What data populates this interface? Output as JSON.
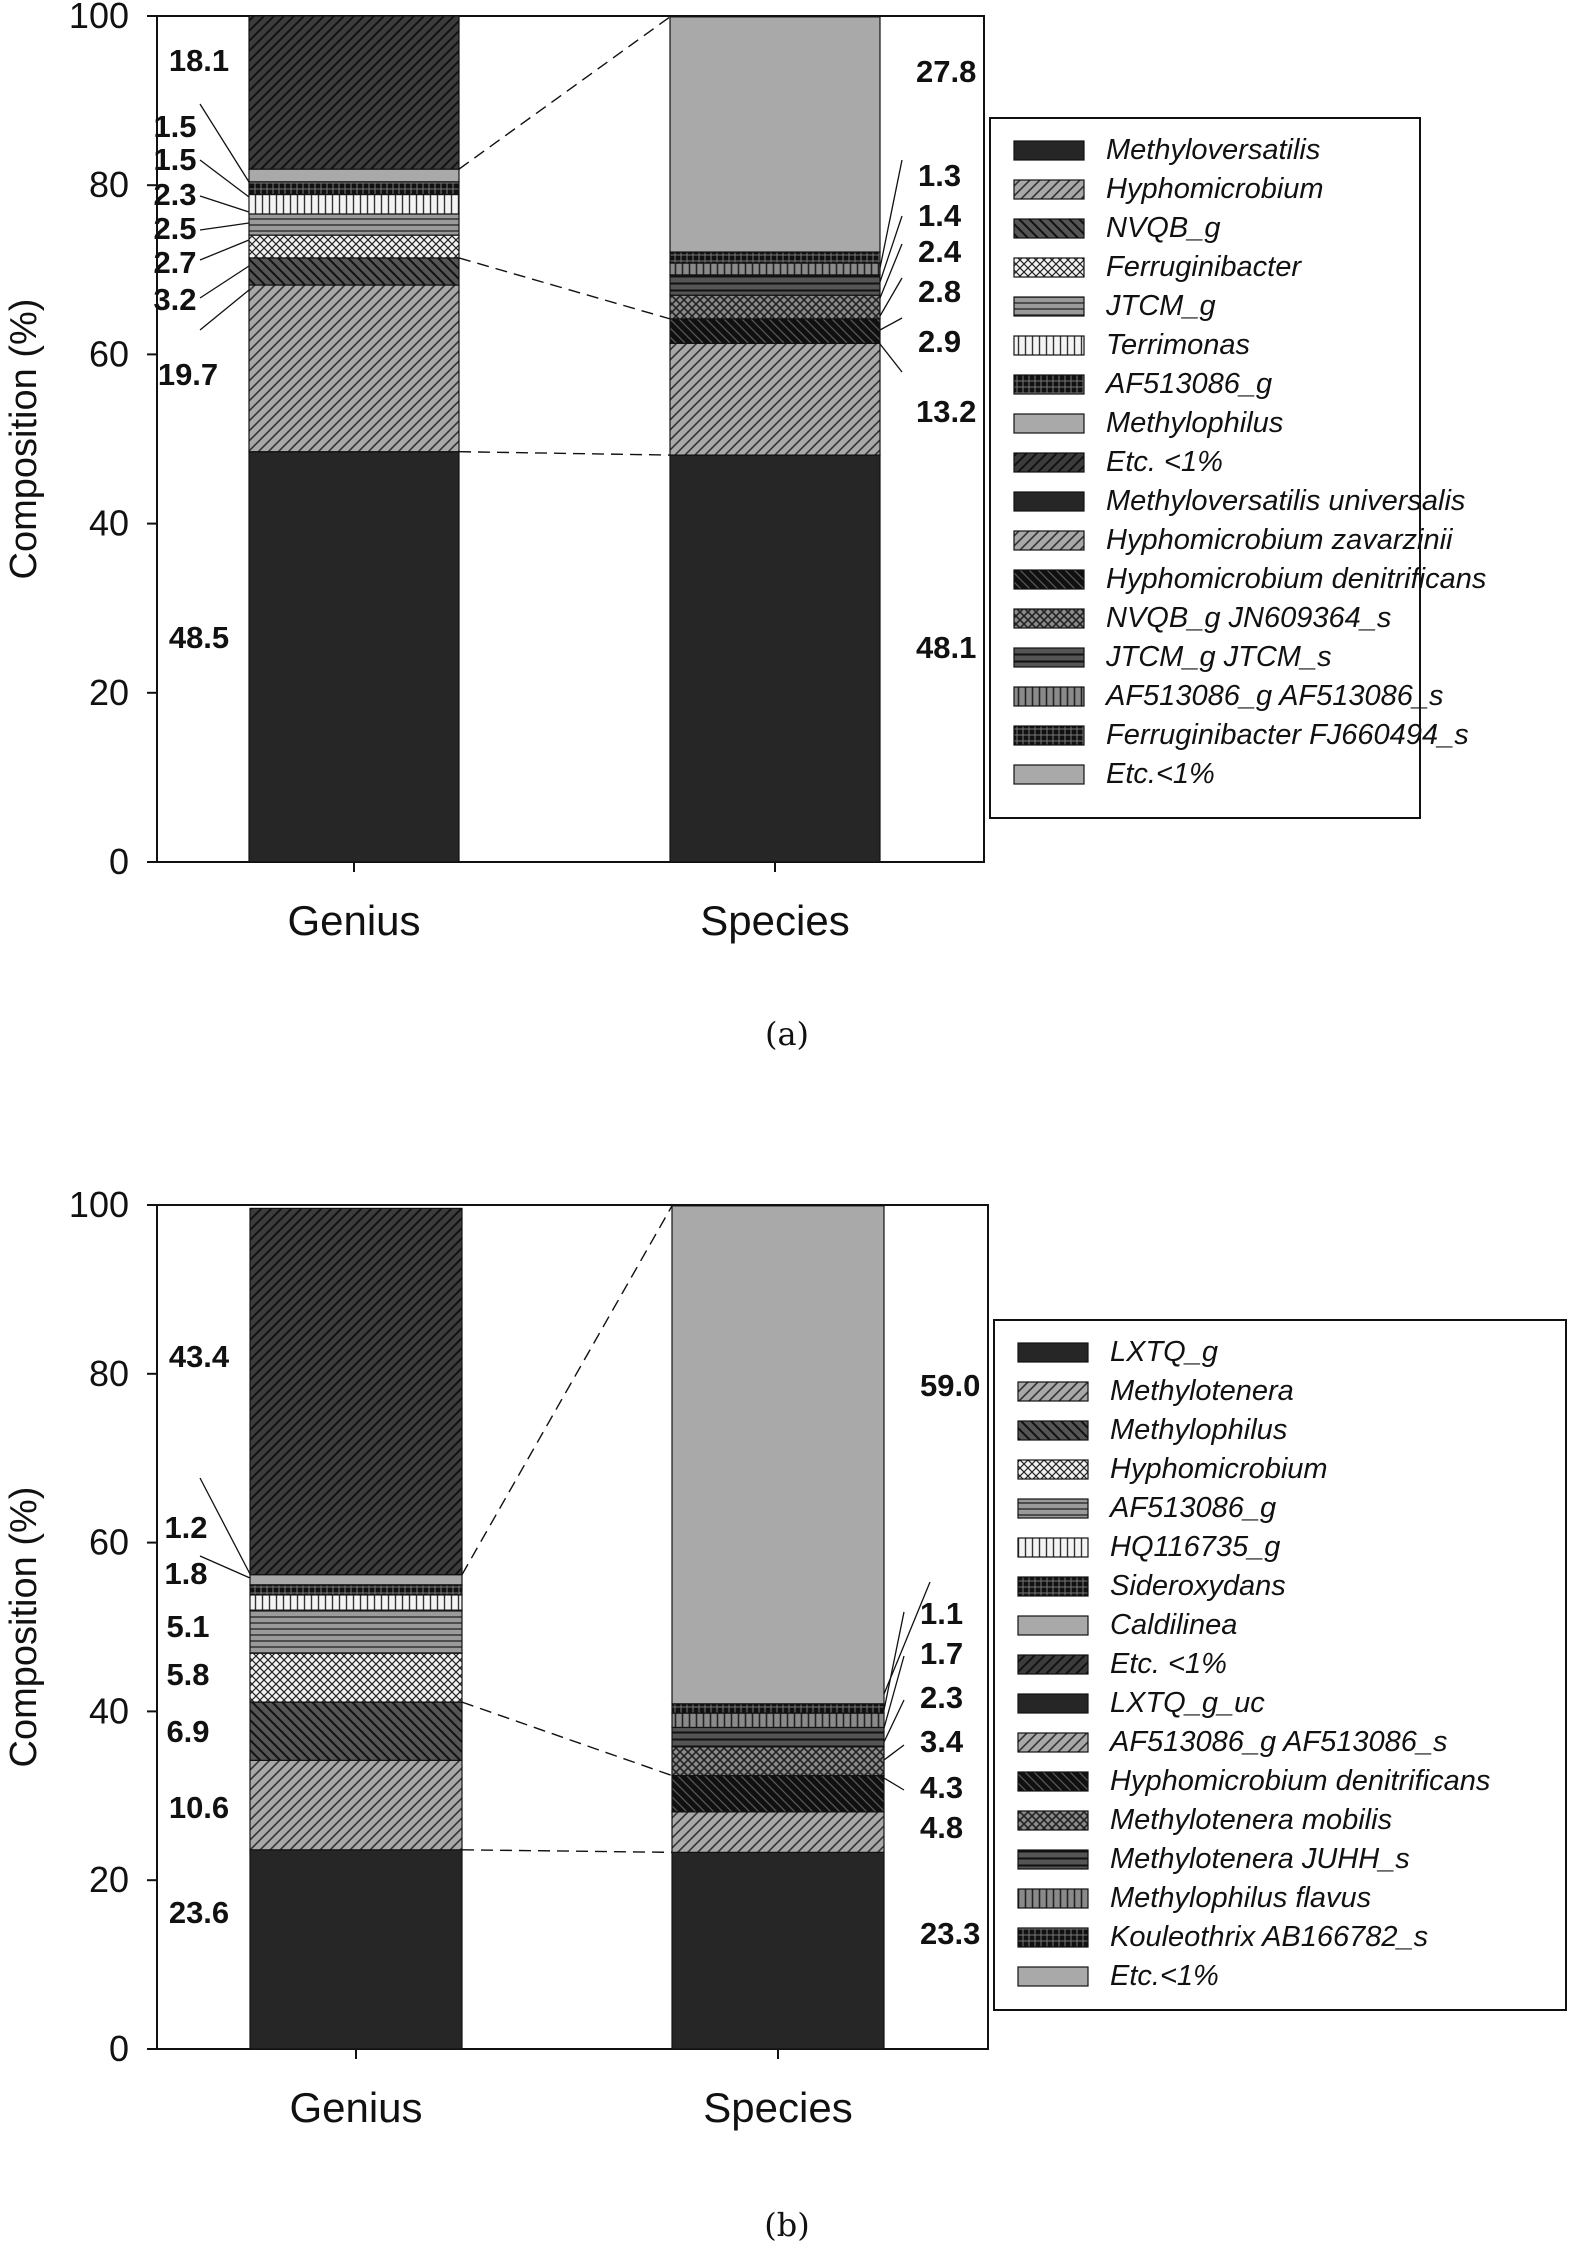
{
  "chart_data": [
    {
      "type": "bar",
      "caption": "(a)",
      "ylabel": "Composition (%)",
      "ylim": [
        0,
        100
      ],
      "yticks": [
        0,
        20,
        40,
        60,
        80,
        100
      ],
      "categories": [
        "Genius",
        "Species"
      ],
      "bars": [
        {
          "name": "Genius",
          "segments": [
            {
              "label": "Methyloversatilis",
              "value": 48.5,
              "pattern": "dark"
            },
            {
              "label": "Hyphomicrobium",
              "value": 19.7,
              "pattern": "diag"
            },
            {
              "label": "NVQB_g",
              "value": 3.2,
              "pattern": "backdiag"
            },
            {
              "label": "Ferruginibacter",
              "value": 2.7,
              "pattern": "crosshatch"
            },
            {
              "label": "JTCM_g",
              "value": 2.5,
              "pattern": "hlines"
            },
            {
              "label": "Terrimonas",
              "value": 2.3,
              "pattern": "vlines"
            },
            {
              "label": "AF513086_g",
              "value": 1.5,
              "pattern": "grid"
            },
            {
              "label": "Methylophilus",
              "value": 1.5,
              "pattern": "gray"
            },
            {
              "label": "Etc. <1%",
              "value": 18.1,
              "pattern": "darkdiag"
            }
          ],
          "labels": [
            "48.5",
            "19.7",
            "3.2",
            "2.7",
            "2.5",
            "2.3",
            "1.5",
            "1.5",
            "18.1"
          ]
        },
        {
          "name": "Species",
          "segments": [
            {
              "label": "Methyloversatilis universalis",
              "value": 48.1,
              "pattern": "dark"
            },
            {
              "label": "Hyphomicrobium zavarzinii",
              "value": 13.2,
              "pattern": "diag"
            },
            {
              "label": "Hyphomicrobium denitrificans",
              "value": 2.9,
              "pattern": "blackback"
            },
            {
              "label": "NVQB_g JN609364_s",
              "value": 2.8,
              "pattern": "darkcross"
            },
            {
              "label": "JTCM_g JTCM_s",
              "value": 2.4,
              "pattern": "darkhlines"
            },
            {
              "label": "AF513086_g AF513086_s",
              "value": 1.4,
              "pattern": "vlinesgray"
            },
            {
              "label": "Ferruginibacter FJ660494_s",
              "value": 1.3,
              "pattern": "grid"
            },
            {
              "label": "Etc.<1%",
              "value": 27.8,
              "pattern": "gray"
            }
          ],
          "labels": [
            "48.1",
            "13.2",
            "2.9",
            "2.8",
            "2.4",
            "1.4",
            "1.3",
            "27.8"
          ]
        }
      ],
      "legend": [
        "Methyloversatilis",
        "Hyphomicrobium",
        "NVQB_g",
        "Ferruginibacter",
        "JTCM_g",
        "Terrimonas",
        "AF513086_g",
        "Methylophilus",
        "Etc. <1%",
        "Methyloversatilis universalis",
        "Hyphomicrobium zavarzinii",
        "Hyphomicrobium denitrificans",
        "NVQB_g JN609364_s",
        "JTCM_g JTCM_s",
        "AF513086_g AF513086_s",
        "Ferruginibacter FJ660494_s",
        "Etc.<1%"
      ],
      "legend_patterns": [
        "dark",
        "diag",
        "backdiag",
        "crosshatch",
        "hlines",
        "vlines",
        "grid",
        "gray",
        "darkdiag",
        "dark",
        "diag",
        "blackback",
        "darkcross",
        "darkhlines",
        "vlinesgray",
        "grid",
        "gray"
      ],
      "connectors": [
        [
          0,
          0
        ],
        [
          2,
          2
        ],
        [
          9,
          7
        ]
      ]
    },
    {
      "type": "bar",
      "caption": "(b)",
      "ylabel": "Composition (%)",
      "ylim": [
        0,
        100
      ],
      "yticks": [
        0,
        20,
        40,
        60,
        80,
        100
      ],
      "categories": [
        "Genius",
        "Species"
      ],
      "bars": [
        {
          "name": "Genius",
          "segments": [
            {
              "label": "LXTQ_g",
              "value": 23.6,
              "pattern": "dark"
            },
            {
              "label": "Methylotenera",
              "value": 10.6,
              "pattern": "diag"
            },
            {
              "label": "Methylophilus",
              "value": 6.9,
              "pattern": "backdiag"
            },
            {
              "label": "Hyphomicrobium",
              "value": 5.8,
              "pattern": "crosshatch"
            },
            {
              "label": "AF513086_g",
              "value": 5.1,
              "pattern": "hlines"
            },
            {
              "label": "HQ116735_g",
              "value": 1.8,
              "pattern": "vlines"
            },
            {
              "label": "Sideroxydans",
              "value": 1.2,
              "pattern": "grid"
            },
            {
              "label": "Caldilinea",
              "value": 1.2,
              "pattern": "gray"
            },
            {
              "label": "Etc. <1%",
              "value": 43.4,
              "pattern": "darkdiag"
            }
          ],
          "labels": [
            "23.6",
            "10.6",
            "6.9",
            "5.8",
            "5.1",
            "1.8",
            "1.2",
            "",
            "43.4"
          ]
        },
        {
          "name": "Species",
          "segments": [
            {
              "label": "LXTQ_g_uc",
              "value": 23.3,
              "pattern": "dark"
            },
            {
              "label": "AF513086_g AF513086_s",
              "value": 4.8,
              "pattern": "diag"
            },
            {
              "label": "Hyphomicrobium denitrificans",
              "value": 4.3,
              "pattern": "blackback"
            },
            {
              "label": "Methylotenera mobilis",
              "value": 3.4,
              "pattern": "darkcross"
            },
            {
              "label": "Methylotenera JUHH_s",
              "value": 2.3,
              "pattern": "darkhlines"
            },
            {
              "label": "Methylophilus flavus",
              "value": 1.7,
              "pattern": "vlinesgray"
            },
            {
              "label": "Kouleothrix AB166782_s",
              "value": 1.1,
              "pattern": "grid"
            },
            {
              "label": "Etc.<1%",
              "value": 59.0,
              "pattern": "gray"
            }
          ],
          "labels": [
            "23.3",
            "4.8",
            "4.3",
            "3.4",
            "2.3",
            "1.7",
            "1.1",
            "59.0"
          ]
        }
      ],
      "legend": [
        "LXTQ_g",
        "Methylotenera",
        "Methylophilus",
        "Hyphomicrobium",
        "AF513086_g",
        "HQ116735_g",
        "Sideroxydans",
        "Caldilinea",
        "Etc. <1%",
        "LXTQ_g_uc",
        "AF513086_g AF513086_s",
        "Hyphomicrobium denitrificans",
        "Methylotenera mobilis",
        "Methylotenera JUHH_s",
        "Methylophilus flavus",
        "Kouleothrix AB166782_s",
        "Etc.<1%"
      ],
      "legend_patterns": [
        "dark",
        "diag",
        "backdiag",
        "crosshatch",
        "hlines",
        "vlines",
        "grid",
        "gray",
        "darkdiag",
        "dark",
        "diag",
        "blackback",
        "darkcross",
        "darkhlines",
        "vlinesgray",
        "grid",
        "gray"
      ],
      "connectors": [
        [
          0,
          0
        ],
        [
          2,
          2
        ],
        [
          9,
          7
        ]
      ]
    }
  ]
}
